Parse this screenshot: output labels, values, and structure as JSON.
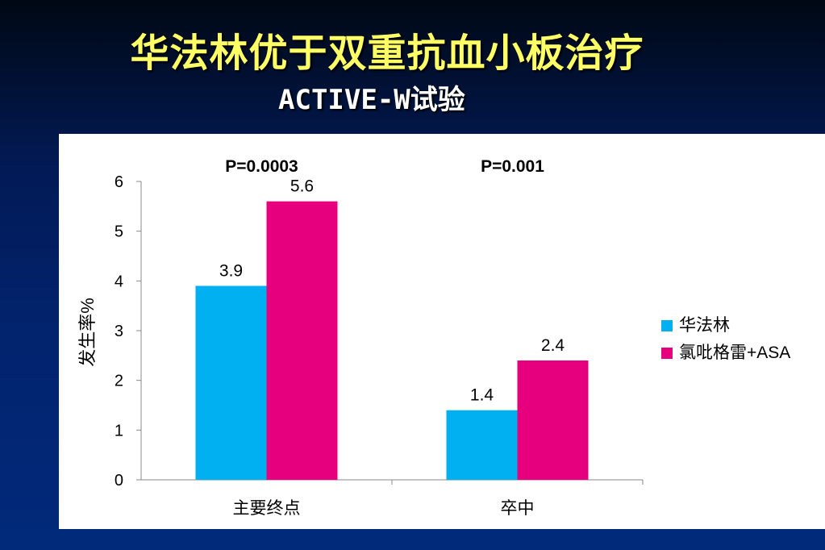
{
  "slide": {
    "title": "华法林优于双重抗血小板治疗",
    "subtitle": "ACTIVE-W试验"
  },
  "colors": {
    "warfarin": "#00b0f0",
    "clopidogrel_asa": "#e6007e",
    "title": "#ffff66"
  },
  "chart_data": {
    "type": "bar",
    "categories": [
      "主要终点",
      "卒中"
    ],
    "series": [
      {
        "name": "华法林",
        "values": [
          3.9,
          1.4
        ]
      },
      {
        "name": "氯吡格雷+ASA",
        "values": [
          5.6,
          2.4
        ]
      }
    ],
    "ylabel": "发生率%",
    "xlabel": "",
    "ylim": [
      0,
      6
    ],
    "yticks": [
      0,
      1,
      2,
      3,
      4,
      5,
      6
    ],
    "annotations": [
      "P=0.0003",
      "P=0.001"
    ],
    "legend_position": "right",
    "grid": false
  }
}
